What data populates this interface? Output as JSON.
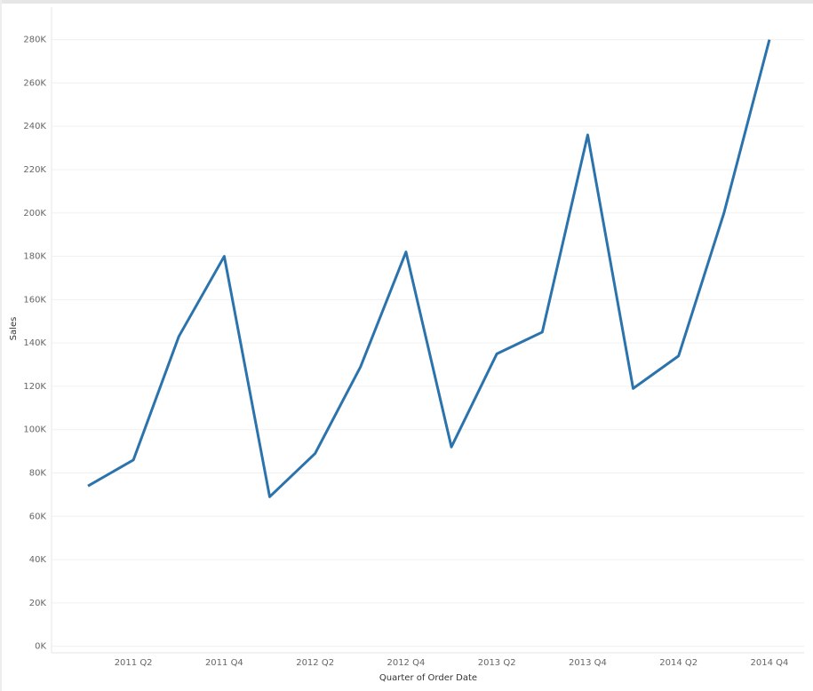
{
  "chart_data": {
    "type": "line",
    "x_label": "Quarter of Order Date",
    "y_label": "Sales",
    "categories": [
      null,
      "2011 Q2",
      null,
      "2011 Q4",
      null,
      "2012 Q2",
      null,
      "2012 Q4",
      null,
      "2013 Q2",
      null,
      "2013 Q4",
      null,
      "2014 Q2",
      null,
      "2014 Q4"
    ],
    "series": [
      {
        "name": "Sales",
        "color": "#2b73ac",
        "values": [
          74000,
          86000,
          143000,
          180000,
          69000,
          89000,
          129000,
          182000,
          92000,
          135000,
          145000,
          236000,
          119000,
          134000,
          200000,
          280000
        ]
      }
    ],
    "ylim": [
      -3000,
      295000
    ],
    "yticks": [
      {
        "value": 0,
        "label": "0K"
      },
      {
        "value": 20000,
        "label": "20K"
      },
      {
        "value": 40000,
        "label": "40K"
      },
      {
        "value": 60000,
        "label": "60K"
      },
      {
        "value": 80000,
        "label": "80K"
      },
      {
        "value": 100000,
        "label": "100K"
      },
      {
        "value": 120000,
        "label": "120K"
      },
      {
        "value": 140000,
        "label": "140K"
      },
      {
        "value": 160000,
        "label": "160K"
      },
      {
        "value": 180000,
        "label": "180K"
      },
      {
        "value": 200000,
        "label": "200K"
      },
      {
        "value": 220000,
        "label": "220K"
      },
      {
        "value": 240000,
        "label": "240K"
      },
      {
        "value": 260000,
        "label": "260K"
      },
      {
        "value": 280000,
        "label": "280K"
      }
    ],
    "grid": true
  }
}
